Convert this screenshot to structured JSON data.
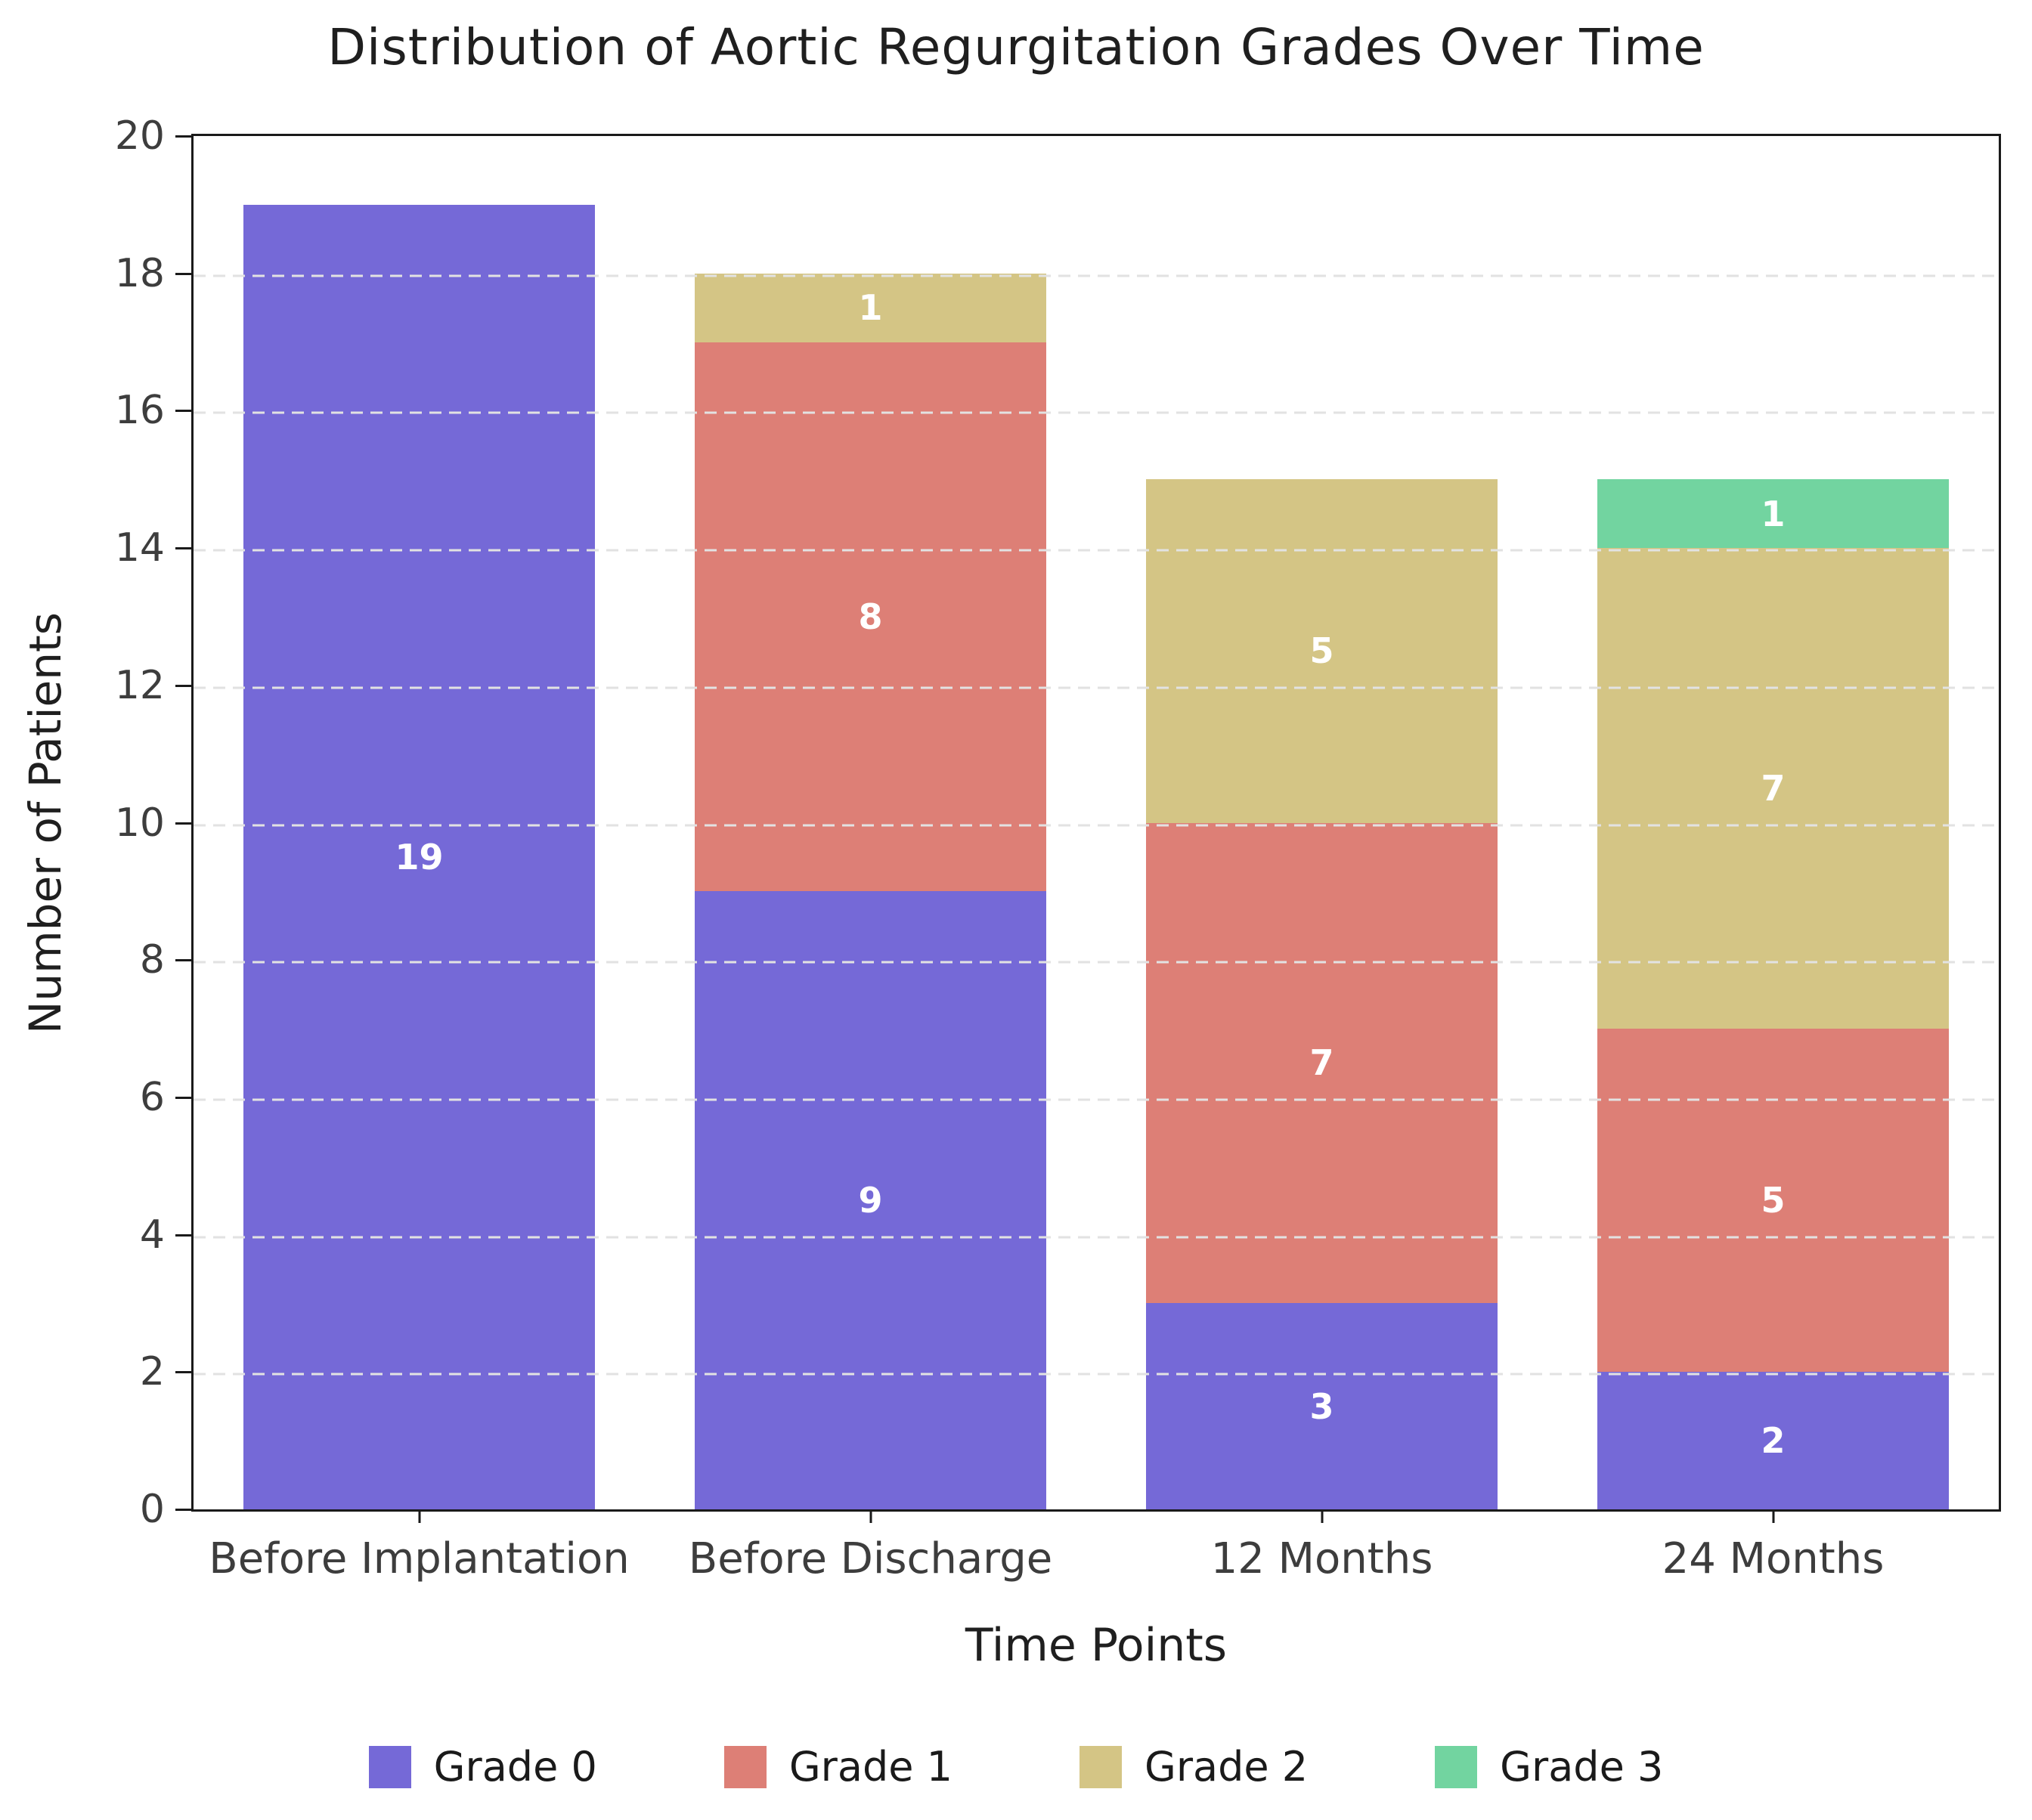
{
  "title": "Distribution of Aortic Regurgitation Grades Over Time",
  "chart_data": {
    "type": "bar",
    "stacked": true,
    "title": "Distribution of Aortic Regurgitation Grades Over Time",
    "xlabel": "Time Points",
    "ylabel": "Number of Patients",
    "categories": [
      "Before Implantation",
      "Before Discharge",
      "12 Months",
      "24 Months"
    ],
    "series": [
      {
        "name": "Grade 0",
        "color": "#7569D7",
        "values": [
          19,
          9,
          3,
          2
        ]
      },
      {
        "name": "Grade 1",
        "color": "#DD7F76",
        "values": [
          0,
          8,
          7,
          5
        ]
      },
      {
        "name": "Grade 2",
        "color": "#D4C585",
        "values": [
          0,
          1,
          5,
          7
        ]
      },
      {
        "name": "Grade 3",
        "color": "#72D4A0",
        "values": [
          0,
          0,
          0,
          1
        ]
      }
    ],
    "bar_totals": [
      19,
      18,
      15,
      15
    ],
    "ylim": [
      0,
      20
    ],
    "yticks": [
      0,
      2,
      4,
      6,
      8,
      10,
      12,
      14,
      16,
      18,
      20
    ],
    "grid": "horizontal-dashed",
    "grid_color": "#e2e2e2",
    "spine_color": "#1a1a1a",
    "bar_label_color": "#ffffff",
    "legend_position": "bottom",
    "legend_labels": [
      "Grade 0",
      "Grade 1",
      "Grade 2",
      "Grade 3"
    ]
  }
}
